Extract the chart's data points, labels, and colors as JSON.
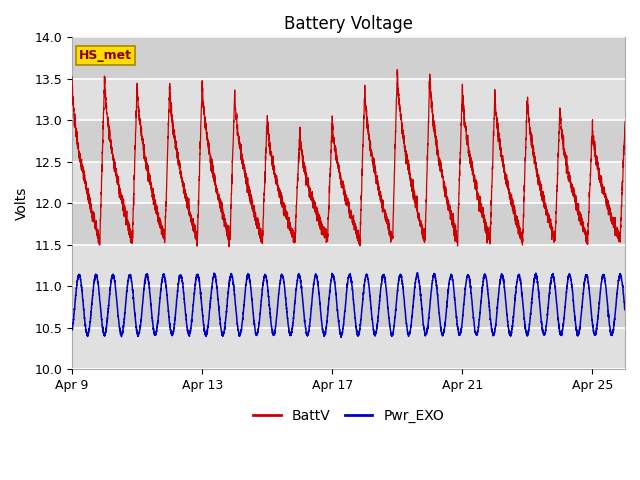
{
  "title": "Battery Voltage",
  "ylabel": "Volts",
  "ylim": [
    10.0,
    14.0
  ],
  "yticks": [
    10.0,
    10.5,
    11.0,
    11.5,
    12.0,
    12.5,
    13.0,
    13.5,
    14.0
  ],
  "xlim_days": [
    0,
    17
  ],
  "xtick_labels": [
    "Apr 9",
    "Apr 13",
    "Apr 17",
    "Apr 21",
    "Apr 25"
  ],
  "xtick_positions": [
    0,
    4,
    8,
    12,
    16
  ],
  "batt_color": "#cc0000",
  "exo_color": "#0000cc",
  "plot_bg": "#e8e8e8",
  "fig_bg": "#ffffff",
  "legend_box_label": "HS_met",
  "legend_box_bg": "#ffdd00",
  "legend_box_border": "#aa8800",
  "legend_items": [
    "BattV",
    "Pwr_EXO"
  ],
  "title_fontsize": 12,
  "axis_fontsize": 10,
  "tick_fontsize": 9,
  "band_colors": [
    "#e0e0e0",
    "#d0d0d0"
  ]
}
